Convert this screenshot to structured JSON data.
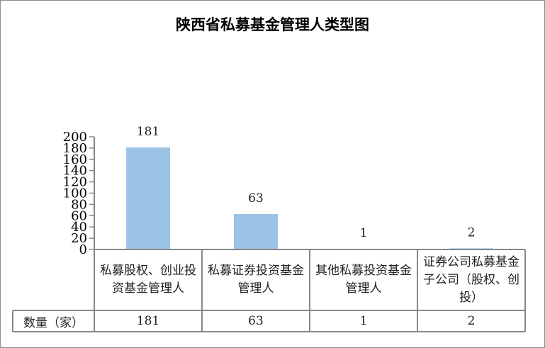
{
  "chart_data": {
    "type": "bar",
    "title": "陕西省私募基金管理人类型图",
    "categories": [
      "私募股权、创业投资基金管理人",
      "私募证券投资基金管理人",
      "其他私募投资基金管理人",
      "证券公司私募基金子公司（股权、创投）"
    ],
    "values": [
      181,
      63,
      1,
      2
    ],
    "ylim": [
      0,
      200
    ],
    "yticks": [
      0,
      20,
      40,
      60,
      80,
      100,
      120,
      140,
      160,
      180,
      200
    ],
    "grid": false,
    "data_labels": true,
    "bar_color": "#9DC3E6",
    "table": {
      "row_label": "数量（家）",
      "values": [
        "181",
        "63",
        "1",
        "2"
      ]
    }
  }
}
